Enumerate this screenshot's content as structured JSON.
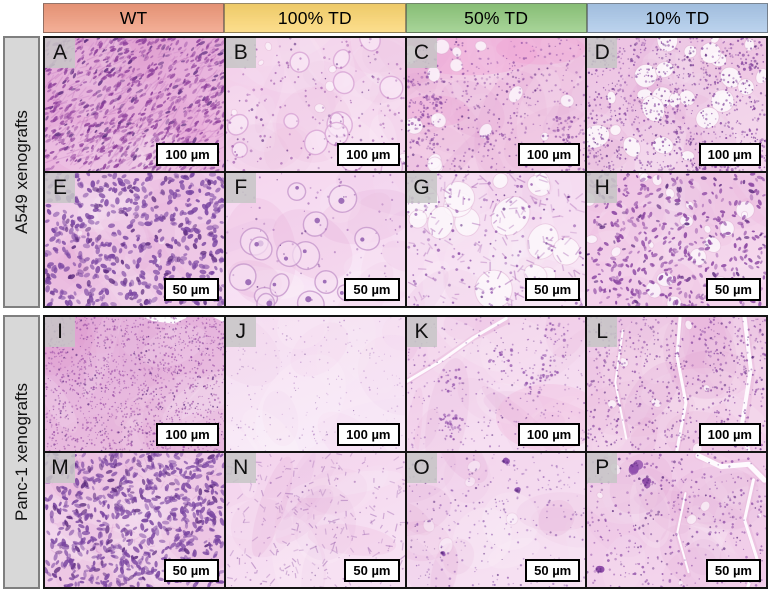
{
  "figure": {
    "description": "Histology micrograph panel figure, 4 conditions x 2 xenograft models, two magnifications each",
    "panel_letters_order": "A to P, left-to-right, top-to-bottom"
  },
  "header": {
    "columns": [
      {
        "label": "WT",
        "color": "#F0997A"
      },
      {
        "label": "100% TD",
        "color": "#FBD56E"
      },
      {
        "label": "50% TD",
        "color": "#8FC87C"
      },
      {
        "label": "10% TD",
        "color": "#A9C7E9"
      }
    ]
  },
  "row_groups": [
    {
      "label": "A549 xenografts"
    },
    {
      "label": "Panc-1 xenografts"
    }
  ],
  "panels": [
    {
      "letter": "A",
      "condition": "WT",
      "row_group": "A549 xenografts",
      "scale_label": "100 µm"
    },
    {
      "letter": "B",
      "condition": "100% TD",
      "row_group": "A549 xenografts",
      "scale_label": "100 µm"
    },
    {
      "letter": "C",
      "condition": "50% TD",
      "row_group": "A549 xenografts",
      "scale_label": "100 µm"
    },
    {
      "letter": "D",
      "condition": "10% TD",
      "row_group": "A549 xenografts",
      "scale_label": "100 µm"
    },
    {
      "letter": "E",
      "condition": "WT",
      "row_group": "A549 xenografts",
      "scale_label": "50 µm"
    },
    {
      "letter": "F",
      "condition": "100% TD",
      "row_group": "A549 xenografts",
      "scale_label": "50 µm"
    },
    {
      "letter": "G",
      "condition": "50% TD",
      "row_group": "A549 xenografts",
      "scale_label": "50 µm"
    },
    {
      "letter": "H",
      "condition": "10% TD",
      "row_group": "A549 xenografts",
      "scale_label": "50 µm"
    },
    {
      "letter": "I",
      "condition": "WT",
      "row_group": "Panc-1 xenografts",
      "scale_label": "100 µm"
    },
    {
      "letter": "J",
      "condition": "100% TD",
      "row_group": "Panc-1 xenografts",
      "scale_label": "100 µm"
    },
    {
      "letter": "K",
      "condition": "50% TD",
      "row_group": "Panc-1 xenografts",
      "scale_label": "100 µm"
    },
    {
      "letter": "L",
      "condition": "10% TD",
      "row_group": "Panc-1 xenografts",
      "scale_label": "100 µm"
    },
    {
      "letter": "M",
      "condition": "WT",
      "row_group": "Panc-1 xenografts",
      "scale_label": "50 µm"
    },
    {
      "letter": "N",
      "condition": "100% TD",
      "row_group": "Panc-1 xenografts",
      "scale_label": "50 µm"
    },
    {
      "letter": "O",
      "condition": "50% TD",
      "row_group": "Panc-1 xenografts",
      "scale_label": "50 µm"
    },
    {
      "letter": "P",
      "condition": "10% TD",
      "row_group": "Panc-1 xenografts",
      "scale_label": "50 µm"
    }
  ]
}
